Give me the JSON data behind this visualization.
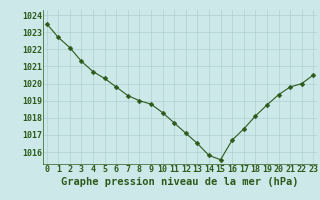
{
  "hours": [
    0,
    1,
    2,
    3,
    4,
    5,
    6,
    7,
    8,
    9,
    10,
    11,
    12,
    13,
    14,
    15,
    16,
    17,
    18,
    19,
    20,
    21,
    22,
    23
  ],
  "pressure": [
    1023.5,
    1022.7,
    1022.1,
    1021.3,
    1020.7,
    1020.3,
    1019.8,
    1019.3,
    1019.0,
    1018.8,
    1018.3,
    1017.7,
    1017.1,
    1016.5,
    1015.8,
    1015.55,
    1016.7,
    1017.35,
    1018.1,
    1018.75,
    1019.35,
    1019.8,
    1020.0,
    1020.5
  ],
  "ylim": [
    1015.3,
    1024.3
  ],
  "yticks": [
    1016,
    1017,
    1018,
    1019,
    1020,
    1021,
    1022,
    1023,
    1024
  ],
  "xticks": [
    0,
    1,
    2,
    3,
    4,
    5,
    6,
    7,
    8,
    9,
    10,
    11,
    12,
    13,
    14,
    15,
    16,
    17,
    18,
    19,
    20,
    21,
    22,
    23
  ],
  "line_color": "#2d5a1b",
  "marker": "D",
  "marker_size": 2.5,
  "bg_color": "#cce8e8",
  "grid_color": "#b0d0d0",
  "tick_color": "#2d5a1b",
  "xlabel": "Graphe pression niveau de la mer (hPa)",
  "xlabel_color": "#2d5a1b",
  "label_fontsize": 6.0,
  "xlabel_fontsize": 7.5
}
